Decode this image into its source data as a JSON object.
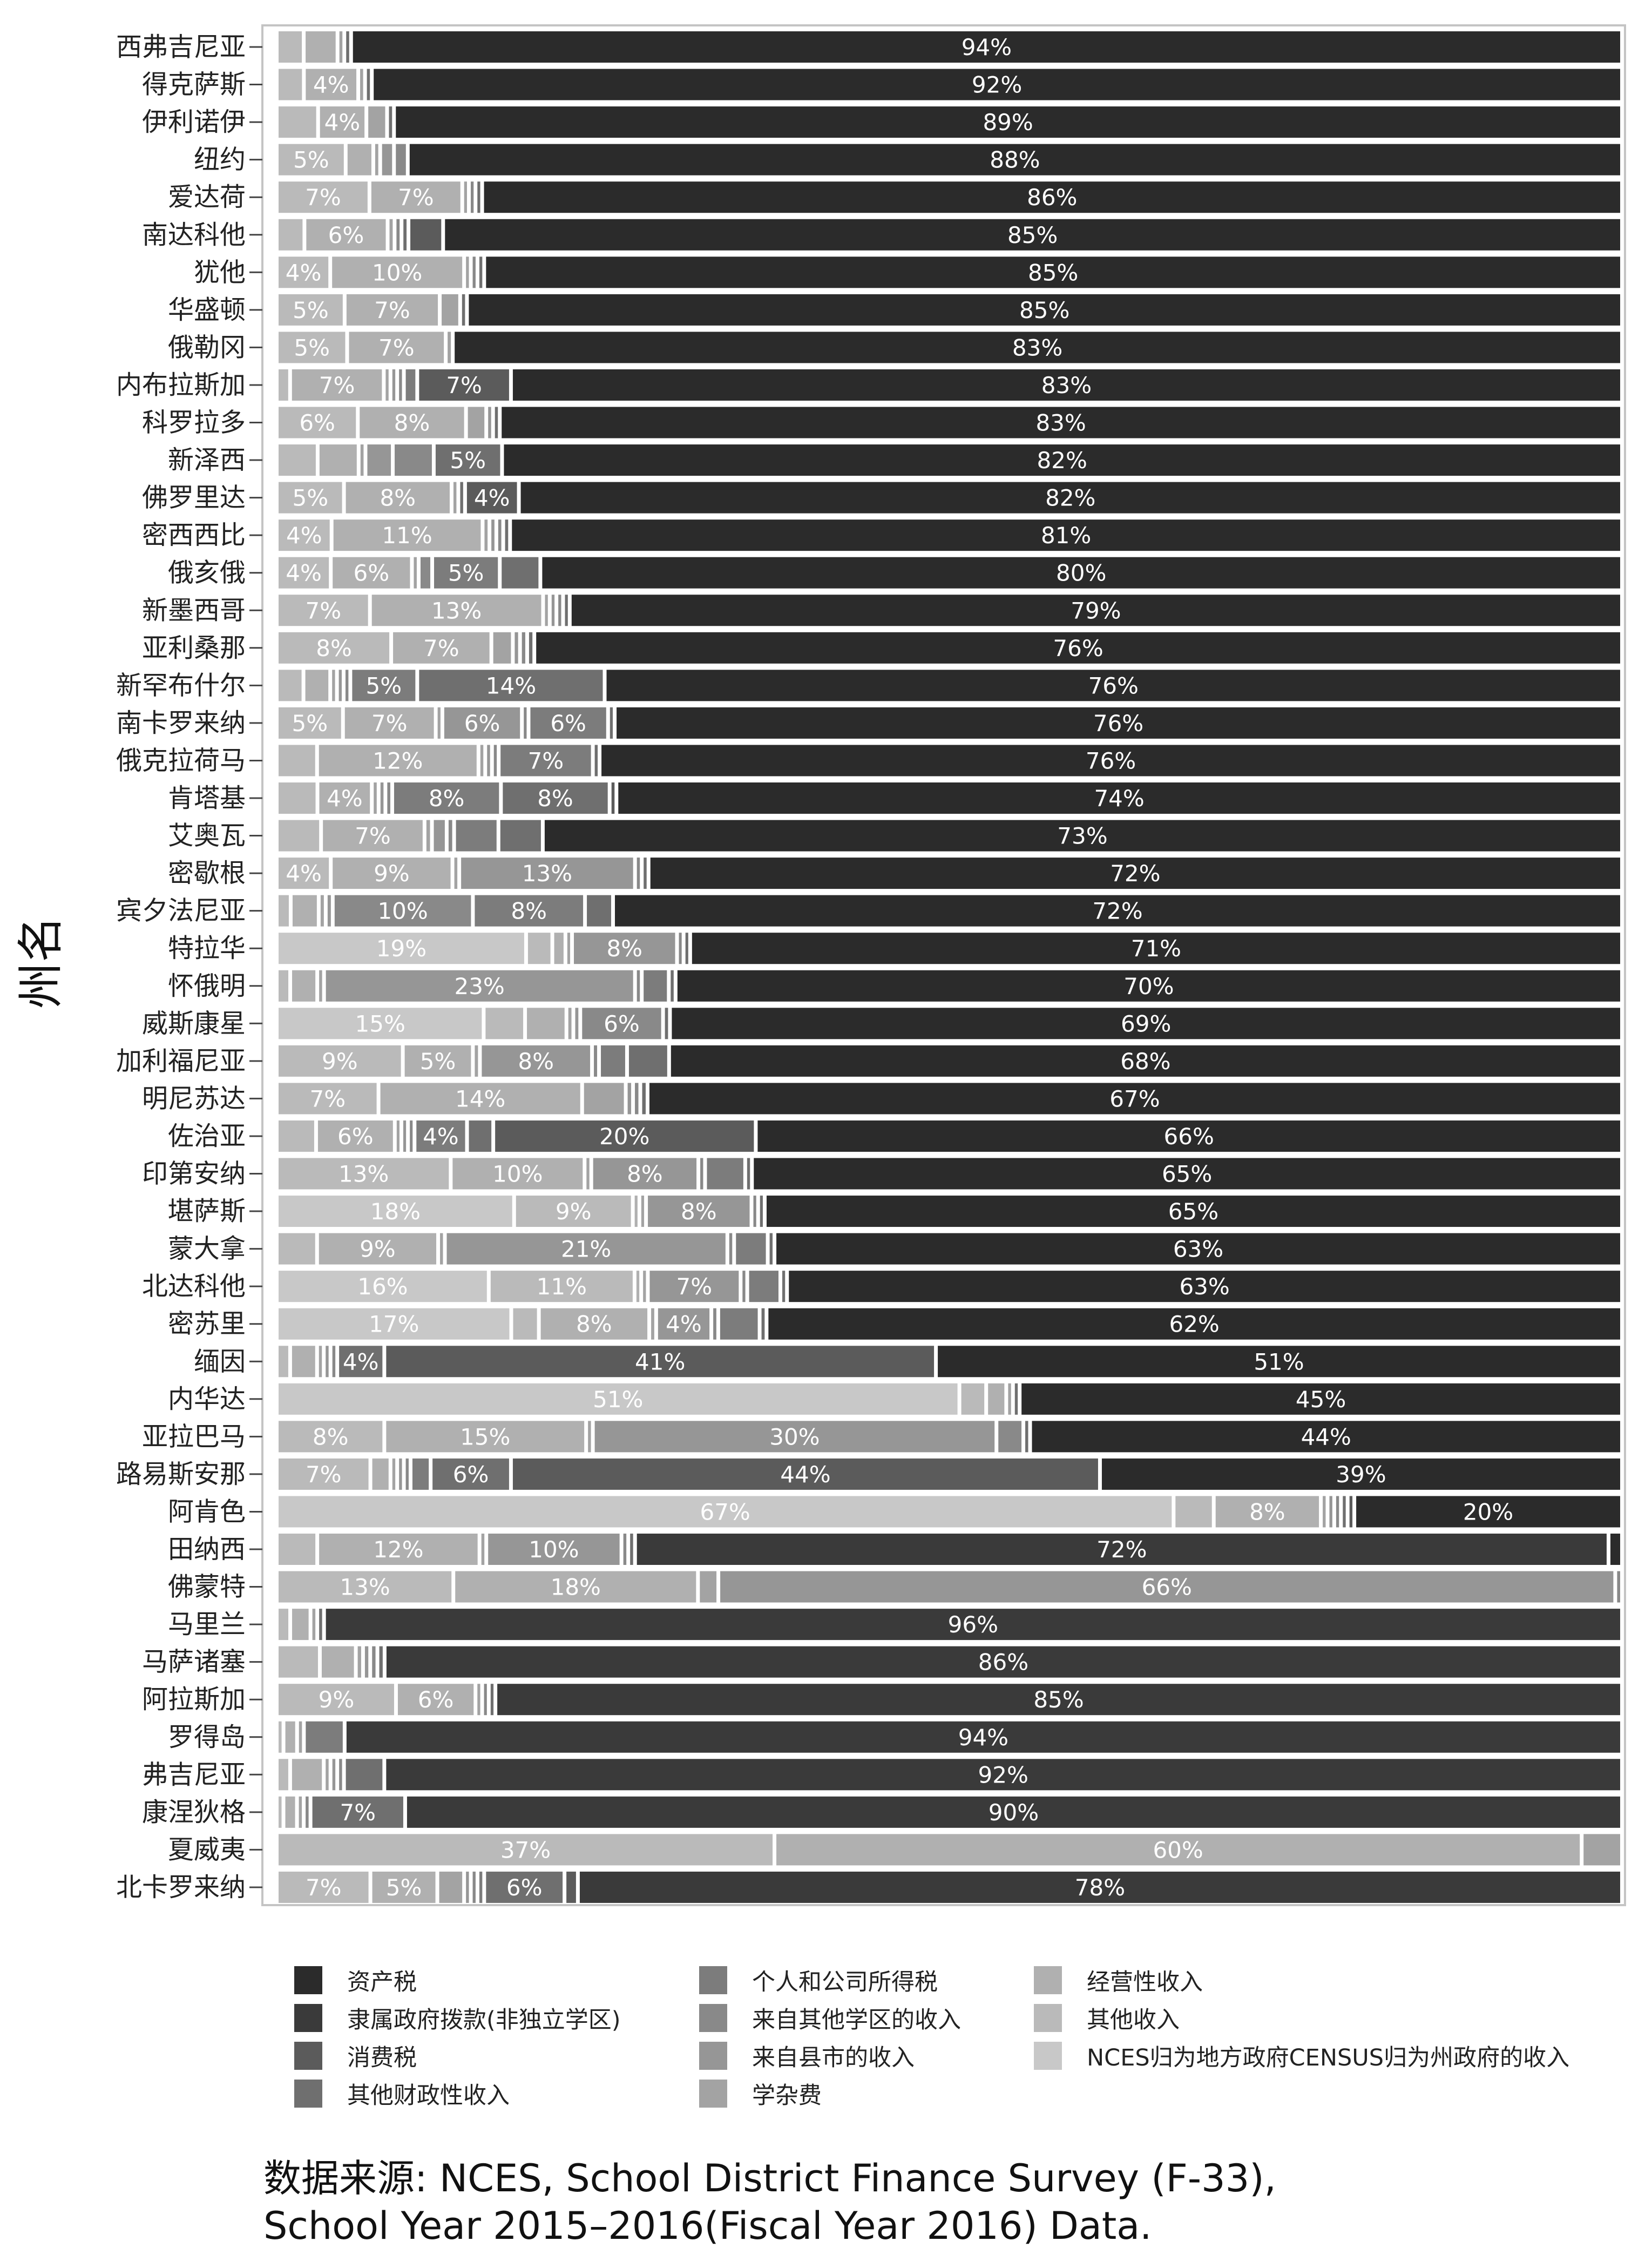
{
  "chart_data": {
    "type": "bar",
    "orientation": "horizontal",
    "stacked": true,
    "normalized": true,
    "xlim": [
      0,
      1
    ],
    "ylabel": "州名",
    "grid": false,
    "legend_position": "bottom",
    "categories": [
      "西弗吉尼亚",
      "得克萨斯",
      "伊利诺伊",
      "纽约",
      "爱达荷",
      "南达科他",
      "犹他",
      "华盛顿",
      "俄勒冈",
      "内布拉斯加",
      "科罗拉多",
      "新泽西",
      "佛罗里达",
      "密西西比",
      "俄亥俄",
      "新墨西哥",
      "亚利桑那",
      "新罕布什尔",
      "南卡罗来纳",
      "俄克拉荷马",
      "肯塔基",
      "艾奥瓦",
      "密歇根",
      "宾夕法尼亚",
      "特拉华",
      "怀俄明",
      "威斯康星",
      "加利福尼亚",
      "明尼苏达",
      "佐治亚",
      "印第安纳",
      "堪萨斯",
      "蒙大拿",
      "北达科他",
      "密苏里",
      "缅因",
      "内华达",
      "亚拉巴马",
      "路易斯安那",
      "阿肯色",
      "田纳西",
      "佛蒙特",
      "马里兰",
      "马萨诸塞",
      "阿拉斯加",
      "罗得岛",
      "弗吉尼亚",
      "康涅狄格",
      "夏威夷",
      "北卡罗来纳"
    ],
    "series_order_left_to_right": [
      "NCES归为地方政府CENSUS归为州政府的收入",
      "其他收入",
      "经营性收入",
      "学杂费",
      "来自县市的收入",
      "来自其他学区的收入",
      "个人和公司所得税",
      "其他财政性收入",
      "消费税",
      "隶属政府拨款(非独立学区)",
      "资产税"
    ],
    "series": [
      {
        "name": "NCES归为地方政府CENSUS归为州政府的收入",
        "color": "#c8c8c8",
        "values": [
          0,
          0,
          0,
          0,
          0,
          0,
          0,
          0,
          0,
          0,
          0,
          0,
          0,
          0,
          0,
          0,
          0,
          0,
          0,
          0,
          0,
          0,
          0,
          0,
          0.19,
          0,
          0.15,
          0,
          0,
          0,
          0,
          0.18,
          0,
          0.16,
          0.17,
          0,
          0.51,
          0,
          0,
          0.67,
          0,
          0,
          0,
          0,
          0,
          0,
          0,
          0,
          0,
          0
        ]
      },
      {
        "name": "其他收入",
        "color": "#bababa",
        "values": [
          0.02,
          0.02,
          0.03,
          0.05,
          0.07,
          0.02,
          0.04,
          0.05,
          0.05,
          0.01,
          0.06,
          0.03,
          0.05,
          0.04,
          0.04,
          0.07,
          0.08,
          0.02,
          0.05,
          0.03,
          0.03,
          0.03,
          0.04,
          0.01,
          0.02,
          0.01,
          0.03,
          0.09,
          0.07,
          0.03,
          0.13,
          0.09,
          0.03,
          0.11,
          0.02,
          0.01,
          0.02,
          0.08,
          0.07,
          0.03,
          0.03,
          0.13,
          0.01,
          0.03,
          0.09,
          0.005,
          0.01,
          0.005,
          0.37,
          0.07
        ]
      },
      {
        "name": "经营性收入",
        "color": "#b0b0b0",
        "values": [
          0.025,
          0.04,
          0.035,
          0.02,
          0.07,
          0.06,
          0.1,
          0.07,
          0.07,
          0.07,
          0.08,
          0.03,
          0.08,
          0.11,
          0.06,
          0.13,
          0.07,
          0.02,
          0.07,
          0.12,
          0.04,
          0.07,
          0.09,
          0.02,
          0.01,
          0.02,
          0.03,
          0.05,
          0.14,
          0.06,
          0.1,
          0.005,
          0.09,
          0.005,
          0.08,
          0.02,
          0.015,
          0.15,
          0.015,
          0.08,
          0.12,
          0.18,
          0.015,
          0.025,
          0.06,
          0.01,
          0.025,
          0.01,
          0.6,
          0.05
        ]
      },
      {
        "name": "学杂费",
        "color": "#a3a3a3",
        "values": [
          0.005,
          0.005,
          0.015,
          0.005,
          0.005,
          0.005,
          0.005,
          0.015,
          0.005,
          0.005,
          0.015,
          0.005,
          0.005,
          0.005,
          0.005,
          0.005,
          0.015,
          0.005,
          0.005,
          0.005,
          0.005,
          0.005,
          0.005,
          0.005,
          0.005,
          0.005,
          0.005,
          0.005,
          0.03,
          0.005,
          0.005,
          0.005,
          0.005,
          0.005,
          0.005,
          0.005,
          0.005,
          0.005,
          0.005,
          0.005,
          0.005,
          0.015,
          0.005,
          0.005,
          0.005,
          0.005,
          0.005,
          0.005,
          0.03,
          0.02
        ]
      },
      {
        "name": "来自县市的收入",
        "color": "#969696",
        "values": [
          0,
          0,
          0,
          0.01,
          0,
          0,
          0,
          0,
          0,
          0.005,
          0.005,
          0.02,
          0,
          0.005,
          0,
          0.005,
          0.005,
          0.005,
          0.06,
          0.005,
          0.005,
          0.01,
          0.13,
          0.005,
          0.08,
          0.23,
          0.005,
          0.08,
          0.005,
          0.005,
          0.08,
          0.08,
          0.21,
          0.07,
          0.04,
          0.005,
          0,
          0.3,
          0.005,
          0.005,
          0.1,
          0.66,
          0,
          0.005,
          0,
          0,
          0.005,
          0,
          0,
          0.005
        ]
      },
      {
        "name": "来自其他学区的收入",
        "color": "#898989",
        "values": [
          0,
          0,
          0,
          0.01,
          0.005,
          0.005,
          0.005,
          0,
          0,
          0.005,
          0,
          0.03,
          0,
          0.005,
          0.01,
          0.005,
          0.005,
          0.005,
          0.005,
          0.005,
          0.005,
          0.005,
          0.005,
          0.1,
          0.005,
          0.005,
          0.06,
          0.005,
          0.005,
          0.005,
          0.005,
          0.005,
          0.005,
          0.005,
          0.005,
          0.005,
          0,
          0.02,
          0.005,
          0.005,
          0.005,
          0.005,
          0,
          0.005,
          0.005,
          0,
          0.005,
          0.005,
          0,
          0.005
        ]
      },
      {
        "name": "个人和公司所得税",
        "color": "#7c7c7c",
        "values": [
          0,
          0,
          0,
          0,
          0,
          0,
          0,
          0,
          0,
          0.01,
          0,
          0,
          0,
          0,
          0.05,
          0,
          0,
          0.05,
          0.06,
          0.07,
          0.08,
          0.03,
          0,
          0.08,
          0,
          0.02,
          0,
          0.02,
          0,
          0.04,
          0.03,
          0,
          0.025,
          0.025,
          0.03,
          0,
          0,
          0,
          0.015,
          0,
          0,
          0,
          0,
          0,
          0,
          0.03,
          0,
          0,
          0,
          0.005
        ]
      },
      {
        "name": "其他财政性收入",
        "color": "#6f6f6f",
        "values": [
          0.005,
          0.005,
          0.005,
          0,
          0.005,
          0.005,
          0.005,
          0.005,
          0,
          0,
          0.005,
          0.05,
          0.005,
          0.005,
          0.03,
          0.005,
          0.005,
          0.14,
          0.005,
          0.005,
          0.08,
          0.03,
          0.005,
          0.02,
          0.005,
          0.005,
          0.005,
          0.03,
          0.005,
          0.02,
          0.005,
          0.005,
          0.005,
          0.005,
          0.005,
          0.035,
          0.005,
          0.005,
          0.06,
          0.005,
          0.005,
          0,
          0.005,
          0.005,
          0.005,
          0,
          0.03,
          0.07,
          0,
          0.06
        ]
      },
      {
        "name": "消费税",
        "color": "#5b5b5b",
        "values": [
          0,
          0,
          0,
          0,
          0,
          0.025,
          0,
          0,
          0,
          0.07,
          0,
          0,
          0.04,
          0,
          0,
          0,
          0,
          0,
          0,
          0,
          0.005,
          0,
          0,
          0,
          0,
          0,
          0,
          0,
          0,
          0.2,
          0,
          0,
          0,
          0,
          0,
          0.41,
          0,
          0,
          0.44,
          0.005,
          0,
          0,
          0,
          0,
          0,
          0,
          0,
          0,
          0,
          0.01
        ]
      },
      {
        "name": "隶属政府拨款(非独立学区)",
        "color": "#3a3a3a",
        "values": [
          0,
          0,
          0,
          0,
          0,
          0,
          0,
          0,
          0,
          0,
          0,
          0,
          0,
          0,
          0,
          0,
          0,
          0,
          0,
          0,
          0,
          0,
          0,
          0,
          0,
          0,
          0,
          0,
          0,
          0,
          0,
          0,
          0,
          0,
          0,
          0,
          0,
          0,
          0,
          0,
          0.72,
          0,
          0.96,
          0.86,
          0.85,
          0.94,
          0.92,
          0.9,
          0,
          0.78
        ]
      },
      {
        "name": "资产税",
        "color": "#2b2b2b",
        "values": [
          0.94,
          0.92,
          0.89,
          0.88,
          0.86,
          0.85,
          0.85,
          0.85,
          0.83,
          0.83,
          0.83,
          0.82,
          0.82,
          0.81,
          0.8,
          0.79,
          0.76,
          0.76,
          0.76,
          0.76,
          0.74,
          0.73,
          0.72,
          0.72,
          0.71,
          0.7,
          0.69,
          0.68,
          0.67,
          0.66,
          0.65,
          0.65,
          0.63,
          0.63,
          0.62,
          0.51,
          0.45,
          0.44,
          0.39,
          0.2,
          0.01,
          0,
          0,
          0,
          0,
          0,
          0,
          0,
          0,
          0
        ]
      }
    ],
    "label_threshold": 0.035,
    "legend": [
      "资产税",
      "隶属政府拨款(非独立学区)",
      "消费税",
      "其他财政性收入",
      "个人和公司所得税",
      "来自其他学区的收入",
      "来自县市的收入",
      "学杂费",
      "经营性收入",
      "其他收入",
      "NCES归为地方政府CENSUS归为州政府的收入"
    ]
  },
  "source_line1": "数据来源: NCES, School District Finance Survey (F-33),",
  "source_line2": "School Year 2015–2016(Fiscal Year 2016) Data."
}
